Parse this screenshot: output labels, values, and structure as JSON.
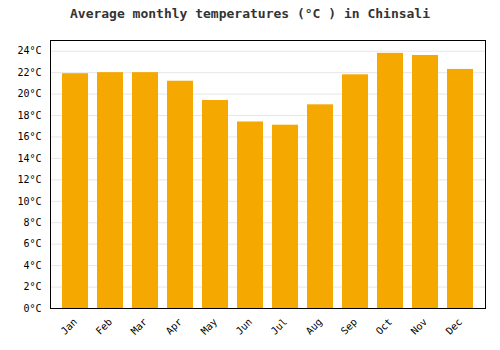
{
  "chart_data": {
    "type": "bar",
    "title": "Average monthly temperatures (°C ) in Chinsali",
    "categories": [
      "Jan",
      "Feb",
      "Mar",
      "Apr",
      "May",
      "Jun",
      "Jul",
      "Aug",
      "Sep",
      "Oct",
      "Nov",
      "Dec"
    ],
    "values": [
      21.9,
      22.0,
      22.0,
      21.2,
      19.4,
      17.4,
      17.1,
      19.0,
      21.8,
      23.8,
      23.6,
      22.3
    ],
    "color": "#F5A800",
    "ylim": [
      0,
      25
    ],
    "yticks": [
      {
        "value": 0,
        "label": "0°C"
      },
      {
        "value": 2,
        "label": "2°C"
      },
      {
        "value": 4,
        "label": "4°C"
      },
      {
        "value": 6,
        "label": "6°C"
      },
      {
        "value": 8,
        "label": "8°C"
      },
      {
        "value": 10,
        "label": "10°C"
      },
      {
        "value": 12,
        "label": "12°C"
      },
      {
        "value": 14,
        "label": "14°C"
      },
      {
        "value": 16,
        "label": "16°C"
      },
      {
        "value": 18,
        "label": "18°C"
      },
      {
        "value": 20,
        "label": "20°C"
      },
      {
        "value": 22,
        "label": "22°C"
      },
      {
        "value": 24,
        "label": "24°C"
      }
    ],
    "grid": true
  }
}
